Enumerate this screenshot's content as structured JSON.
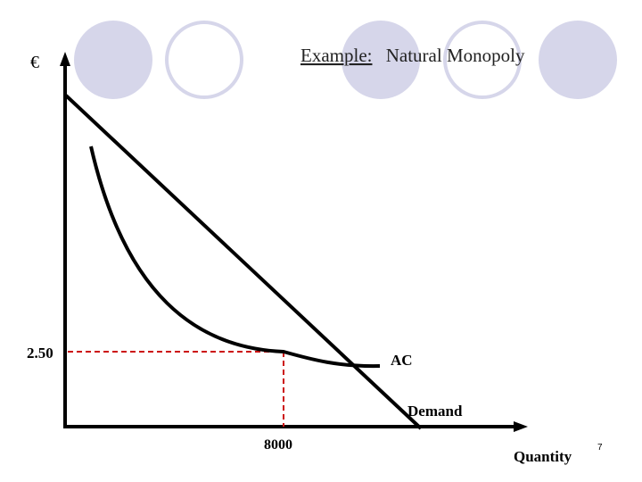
{
  "slide": {
    "title_prefix": "Example:",
    "title_rest": "Natural Monopoly",
    "page_number": "7",
    "colors": {
      "circle": "#d6d6ea",
      "axes": "#000000",
      "reference_line": "#cc1111"
    }
  },
  "diagram": {
    "y_axis_label": "€",
    "x_axis_label": "Quantity",
    "price_label": "2.50",
    "quantity_label": "8000",
    "ac_label": "AC",
    "demand_label": "Demand"
  }
}
